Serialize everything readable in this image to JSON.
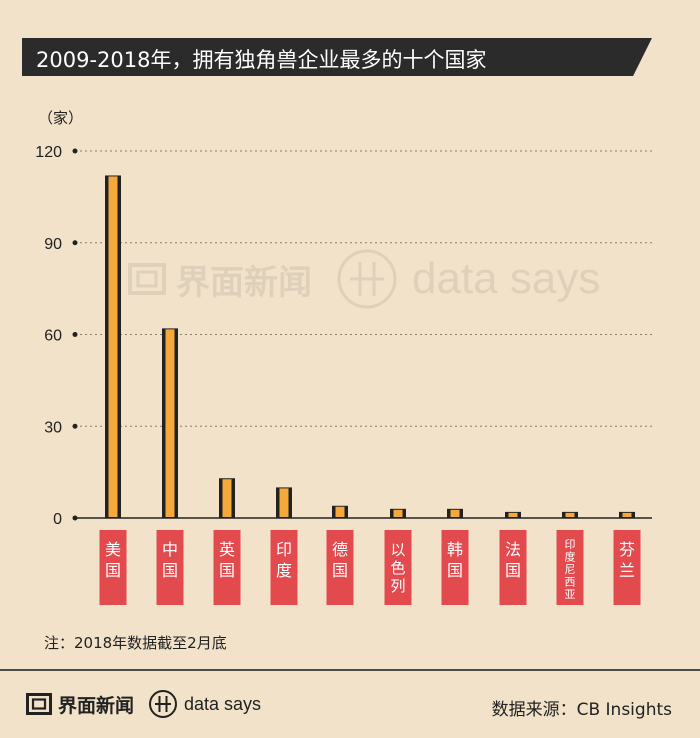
{
  "title": "2009-2018年，拥有独角兽企业最多的十个国家",
  "note": "注：2018年数据截至2月底",
  "brand": {
    "name": "界面新闻",
    "sub": "data says"
  },
  "source": "数据来源：CB Insights",
  "colors": {
    "bar_dark": "#222222",
    "bar_accent": "#f5a93a",
    "label_bg": "#e24a4e",
    "background": "#f2e2c9"
  },
  "chart_data": {
    "type": "bar",
    "unit_label": "（家）",
    "categories": [
      "美国",
      "中国",
      "英国",
      "印度",
      "德国",
      "以色列",
      "韩国",
      "法国",
      "印度尼西亚",
      "芬兰"
    ],
    "values": [
      112,
      62,
      13,
      10,
      4,
      3,
      3,
      2,
      2,
      2
    ],
    "ylim": [
      0,
      120
    ],
    "yticks": [
      0,
      30,
      60,
      90,
      120
    ],
    "grid": true
  }
}
